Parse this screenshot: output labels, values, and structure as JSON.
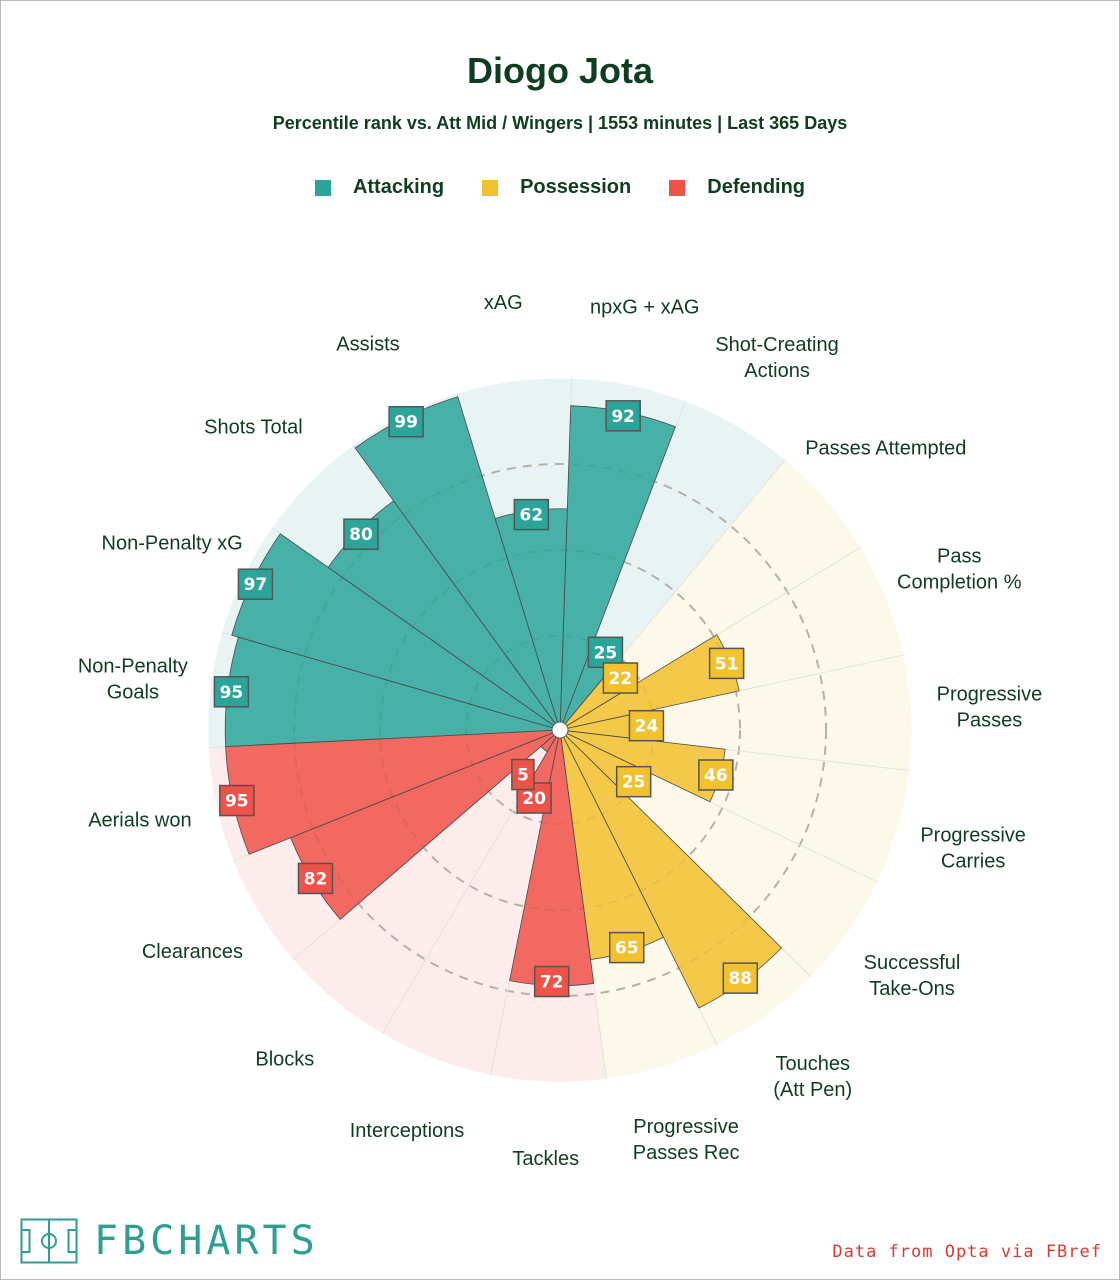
{
  "header": {
    "title": "Diogo Jota",
    "subtitle": "Percentile rank vs. Att Mid / Wingers | 1553 minutes | Last 365 Days"
  },
  "legend": [
    {
      "label": "Attacking",
      "color": "#2ba599"
    },
    {
      "label": "Possession",
      "color": "#f2c12e"
    },
    {
      "label": "Defending",
      "color": "#ee5248"
    }
  ],
  "footer": {
    "logo_text": "FBCHARTS",
    "credit": "Data from Opta via FBref"
  },
  "chart_data": {
    "type": "radar",
    "scale": [
      0,
      100
    ],
    "categories": [
      {
        "name": "Attacking",
        "color": "#2ba599",
        "bg": "#e7f4f3"
      },
      {
        "name": "Possession",
        "color": "#f2c12e",
        "bg": "#fdf9ea"
      },
      {
        "name": "Defending",
        "color": "#ee5248",
        "bg": "#fdecec"
      }
    ],
    "metrics": [
      {
        "label": "npxG + xAG",
        "value": 92,
        "category": "Attacking"
      },
      {
        "label": "Shot-Creating Actions",
        "value": 25,
        "category": "Attacking"
      },
      {
        "label": "Passes Attempted",
        "value": 22,
        "category": "Possession"
      },
      {
        "label": "Pass Completion %",
        "value": 51,
        "category": "Possession"
      },
      {
        "label": "Progressive Passes",
        "value": 24,
        "category": "Possession"
      },
      {
        "label": "Progressive Carries",
        "value": 46,
        "category": "Possession"
      },
      {
        "label": "Successful Take-Ons",
        "value": 25,
        "category": "Possession"
      },
      {
        "label": "Touches (Att Pen)",
        "value": 88,
        "category": "Possession"
      },
      {
        "label": "Progressive Passes Rec",
        "value": 65,
        "category": "Possession"
      },
      {
        "label": "Tackles",
        "value": 72,
        "category": "Defending"
      },
      {
        "label": "Interceptions",
        "value": 20,
        "category": "Defending"
      },
      {
        "label": "Blocks",
        "value": 5,
        "category": "Defending"
      },
      {
        "label": "Clearances",
        "value": 82,
        "category": "Defending"
      },
      {
        "label": "Aerials won",
        "value": 95,
        "category": "Defending"
      },
      {
        "label": "Non-Penalty Goals",
        "value": 95,
        "category": "Attacking"
      },
      {
        "label": "Non-Penalty xG",
        "value": 97,
        "category": "Attacking"
      },
      {
        "label": "Shots Total",
        "value": 80,
        "category": "Attacking"
      },
      {
        "label": "Assists",
        "value": 99,
        "category": "Attacking"
      },
      {
        "label": "xAG",
        "value": 62,
        "category": "Attacking"
      }
    ]
  }
}
